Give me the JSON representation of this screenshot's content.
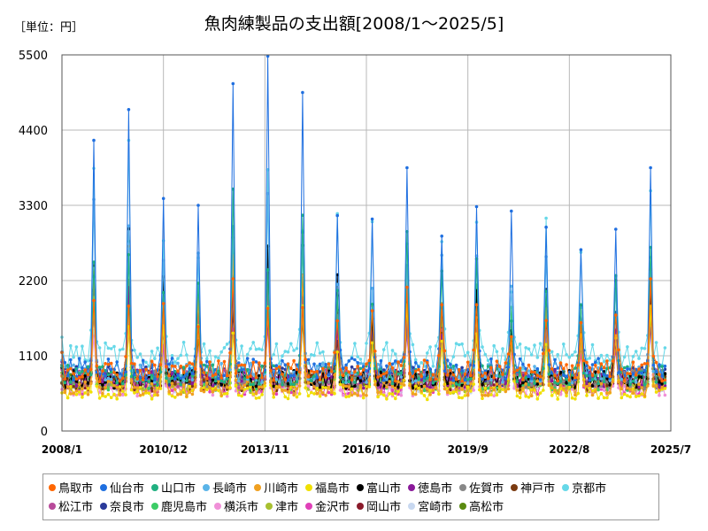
{
  "unit_label": "［単位：円］",
  "chart_data": {
    "type": "line",
    "title": "魚肉練製品の支出額[2008/1～2025/5]",
    "xlabel": "",
    "ylabel": "",
    "ylim": [
      0,
      5500
    ],
    "yticks": [
      0,
      1100,
      2200,
      3300,
      4400,
      5500
    ],
    "xticks": [
      "2008/1",
      "2010/12",
      "2013/11",
      "2016/10",
      "2019/9",
      "2022/8",
      "2025/7"
    ],
    "x_range": [
      "2008/1",
      "2025/7"
    ],
    "grid": true,
    "legend_position": "bottom",
    "baseline_peak_months": [
      {
        "date": "2008/12",
        "value": 4250
      },
      {
        "date": "2009/12",
        "value": 4700
      },
      {
        "date": "2010/12",
        "value": 3400
      },
      {
        "date": "2011/12",
        "value": 3300
      },
      {
        "date": "2012/12",
        "value": 5080
      },
      {
        "date": "2013/12",
        "value": 5480
      },
      {
        "date": "2014/12",
        "value": 4950
      },
      {
        "date": "2015/12",
        "value": 3150
      },
      {
        "date": "2016/12",
        "value": 3100
      },
      {
        "date": "2017/12",
        "value": 3850
      },
      {
        "date": "2018/12",
        "value": 2850
      },
      {
        "date": "2019/12",
        "value": 3280
      },
      {
        "date": "2021/12",
        "value": 2980
      },
      {
        "date": "2022/12",
        "value": 2650
      },
      {
        "date": "2023/12",
        "value": 2950
      },
      {
        "date": "2024/12",
        "value": 3850
      }
    ],
    "series": [
      {
        "name": "鳥取市",
        "color": "#ff6600",
        "base": 880,
        "peak": 2300
      },
      {
        "name": "仙台市",
        "color": "#1f6fe0",
        "base": 900,
        "peak": 5480
      },
      {
        "name": "山口市",
        "color": "#20b080",
        "base": 820,
        "peak": 3200
      },
      {
        "name": "長崎市",
        "color": "#5ab4e8",
        "base": 850,
        "peak": 3350
      },
      {
        "name": "川崎市",
        "color": "#f0a020",
        "base": 620,
        "peak": 2450
      },
      {
        "name": "福島市",
        "color": "#f0e000",
        "base": 560,
        "peak": 1900
      },
      {
        "name": "富山市",
        "color": "#000000",
        "base": 760,
        "peak": 2750
      },
      {
        "name": "徳島市",
        "color": "#8a1a9a",
        "base": 760,
        "peak": 2000
      },
      {
        "name": "佐賀市",
        "color": "#888888",
        "base": 760,
        "peak": 2100
      },
      {
        "name": "神戸市",
        "color": "#7a3a10",
        "base": 720,
        "peak": 2000
      },
      {
        "name": "京都市",
        "color": "#66d8e8",
        "base": 1100,
        "peak": 3850
      },
      {
        "name": "松江市",
        "color": "#b84a9a",
        "base": 760,
        "peak": 2200
      },
      {
        "name": "奈良市",
        "color": "#2a3a9a",
        "base": 800,
        "peak": 2100
      },
      {
        "name": "鹿児島市",
        "color": "#3ccc66",
        "base": 720,
        "peak": 2600
      },
      {
        "name": "横浜市",
        "color": "#f090d8",
        "base": 620,
        "peak": 1900
      },
      {
        "name": "津市",
        "color": "#a8c030",
        "base": 680,
        "peak": 2100
      },
      {
        "name": "金沢市",
        "color": "#e040b8",
        "base": 650,
        "peak": 1900
      },
      {
        "name": "岡山市",
        "color": "#8a1a2a",
        "base": 700,
        "peak": 2000
      },
      {
        "name": "宮崎市",
        "color": "#c8d8f0",
        "base": 680,
        "peak": 2000
      },
      {
        "name": "高松市",
        "color": "#5a8a10",
        "base": 700,
        "peak": 2100
      }
    ]
  }
}
